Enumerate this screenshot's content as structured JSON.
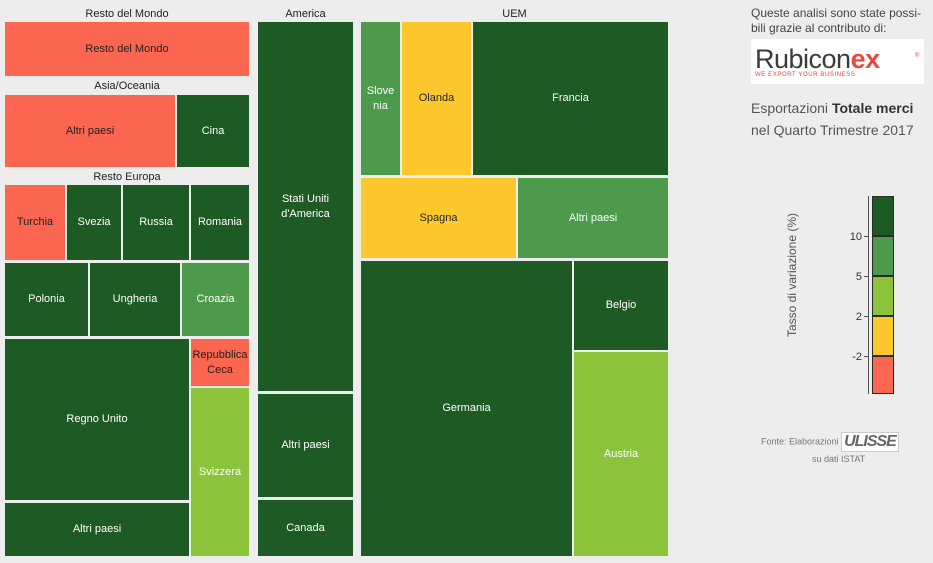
{
  "chart_data": {
    "type": "treemap",
    "color_scale": {
      "title": "Tasso di variazione (%)",
      "ticks": [
        "10",
        "5",
        "2",
        "-2"
      ],
      "colors": [
        "#1e5a24",
        "#4e9a4c",
        "#8bc43a",
        "#fdc82e",
        "#fb6650"
      ]
    },
    "groups": [
      {
        "name": "Resto del Mondo",
        "items": [
          {
            "name": "Resto del Mondo",
            "color": "#fb6650"
          }
        ]
      },
      {
        "name": "Asia/Oceania",
        "items": [
          {
            "name": "Altri paesi",
            "color": "#fb6650"
          },
          {
            "name": "Cina",
            "color": "#1e5a24"
          }
        ]
      },
      {
        "name": "Resto Europa",
        "items": [
          {
            "name": "Turchia",
            "color": "#fb6650"
          },
          {
            "name": "Svezia",
            "color": "#1e5a24"
          },
          {
            "name": "Russia",
            "color": "#1e5a24"
          },
          {
            "name": "Romania",
            "color": "#1e5a24"
          },
          {
            "name": "Polonia",
            "color": "#1e5a24"
          },
          {
            "name": "Ungheria",
            "color": "#1e5a24"
          },
          {
            "name": "Croazia",
            "color": "#4e9a4c"
          },
          {
            "name": "Regno Unito",
            "color": "#1e5a24"
          },
          {
            "name": "Repubblica Ceca",
            "color": "#fb6650"
          },
          {
            "name": "Svizzera",
            "color": "#8bc43a"
          },
          {
            "name": "Altri paesi",
            "color": "#1e5a24"
          }
        ]
      },
      {
        "name": "America",
        "items": [
          {
            "name": "Stati Uniti d'America",
            "color": "#1e5a24"
          },
          {
            "name": "Altri paesi",
            "color": "#1e5a24"
          },
          {
            "name": "Canada",
            "color": "#1e5a24"
          }
        ]
      },
      {
        "name": "UEM",
        "items": [
          {
            "name": "Slovenia",
            "color": "#4e9a4c"
          },
          {
            "name": "Olanda",
            "color": "#fdc82e"
          },
          {
            "name": "Francia",
            "color": "#1e5a24"
          },
          {
            "name": "Spagna",
            "color": "#fdc82e"
          },
          {
            "name": "Altri paesi",
            "color": "#4e9a4c"
          },
          {
            "name": "Germania",
            "color": "#1e5a24"
          },
          {
            "name": "Belgio",
            "color": "#1e5a24"
          },
          {
            "name": "Austria",
            "color": "#8bc43a"
          }
        ]
      }
    ]
  },
  "sidebar": {
    "intro": "Queste analisi sono state possi-bili grazie al contributo di:",
    "sponsor_logo": {
      "word": "Rubicon",
      "ex": "ex",
      "reg": "®",
      "tagline": "WE EXPORT YOUR BUSINESS"
    },
    "title_prefix": "Esportazioni ",
    "title_bold": "Totale merci",
    "title_line2": "nel Quarto Trimestre 2017",
    "source_text": "Fonte: Elaborazioni",
    "source_logo": "ULISSE",
    "source_line2": "su dati ISTAT"
  }
}
